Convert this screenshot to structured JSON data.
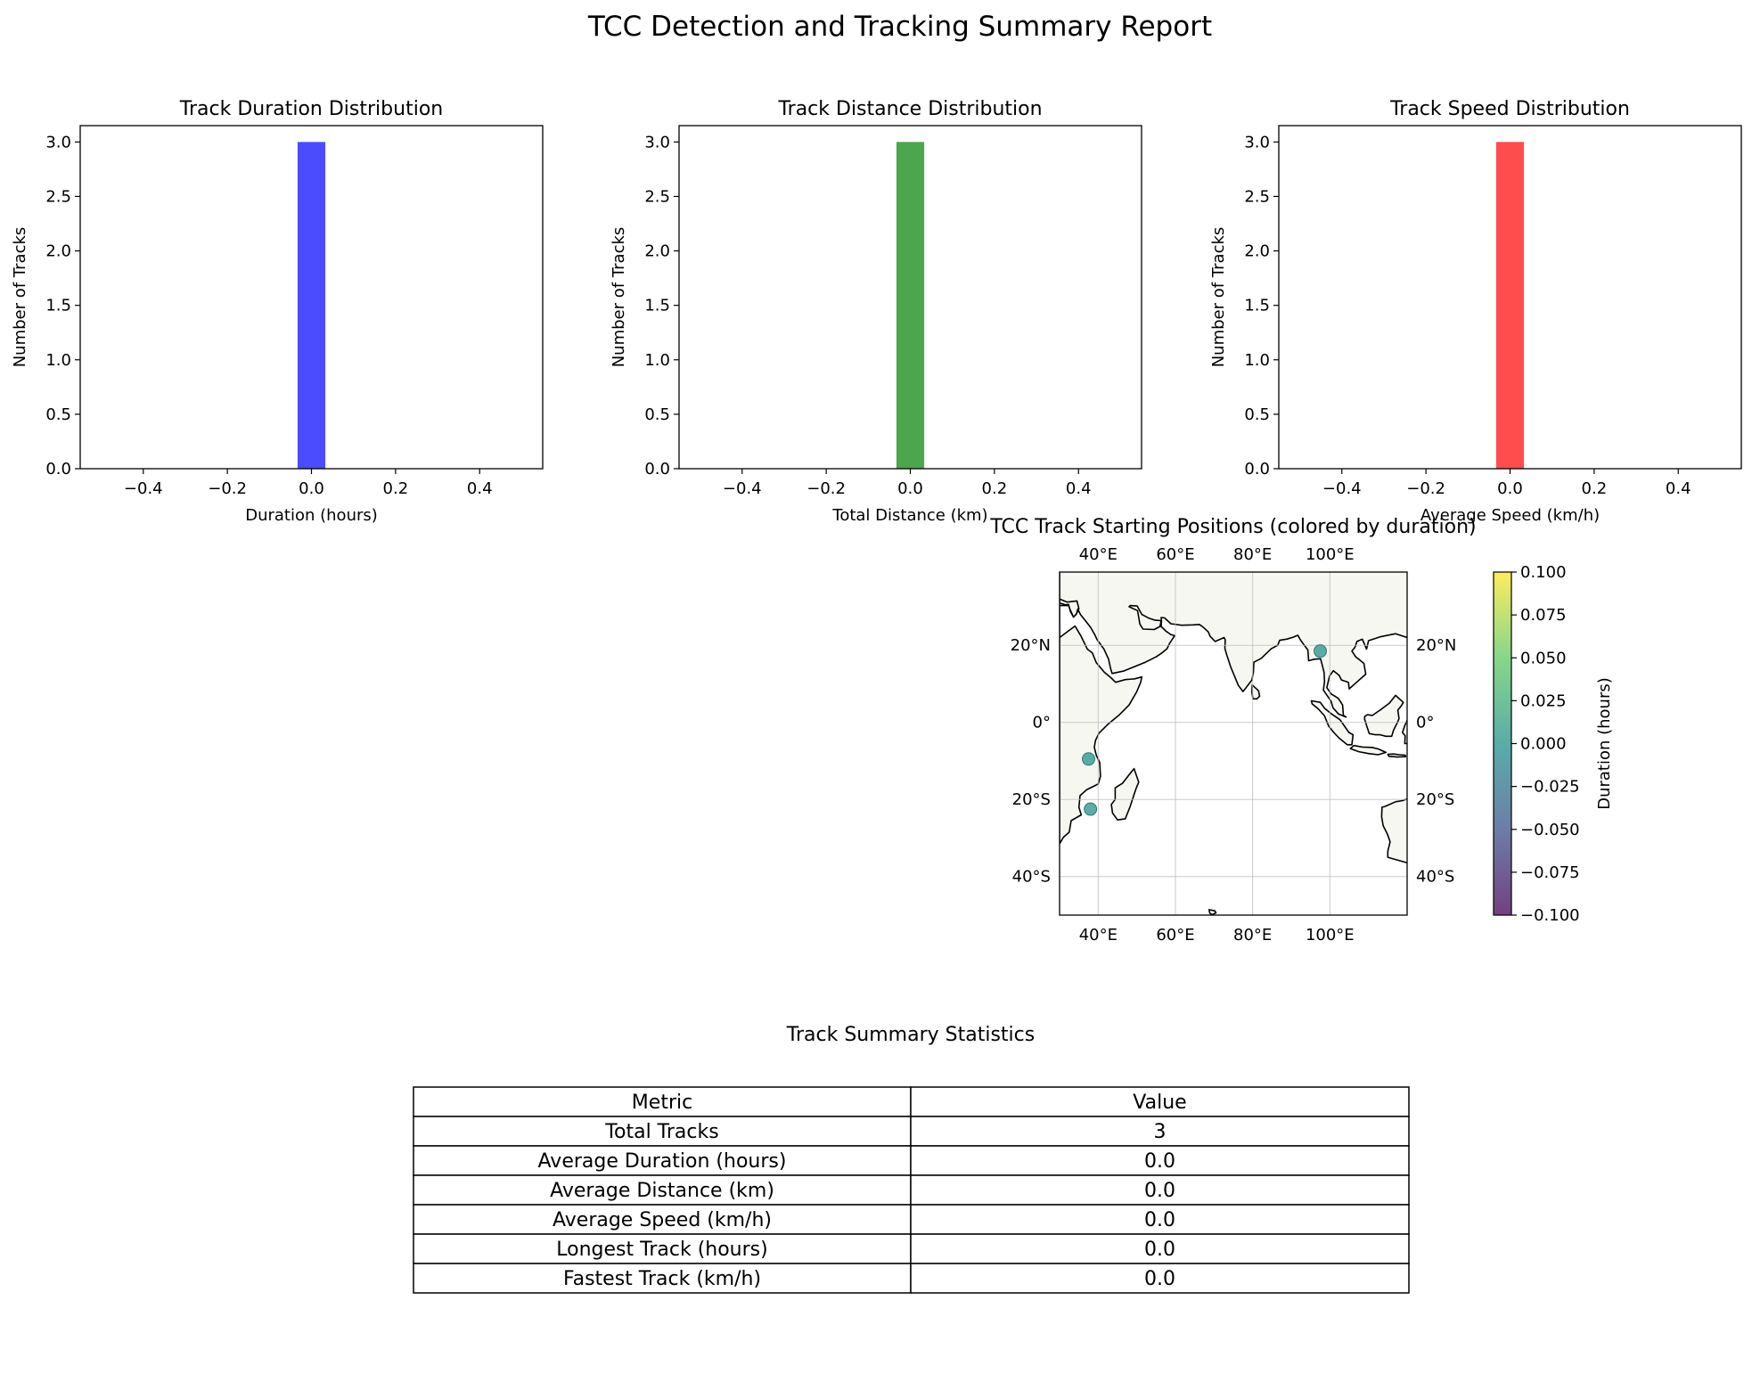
{
  "suptitle": "TCC Detection and Tracking Summary Report",
  "chart_data": [
    {
      "type": "bar",
      "title": "Track Duration Distribution",
      "xlabel": "Duration (hours)",
      "ylabel": "Number of Tracks",
      "xlim": [
        -0.55,
        0.55
      ],
      "ylim": [
        0,
        3.15
      ],
      "xticks": [
        -0.4,
        -0.2,
        0.0,
        0.2,
        0.4
      ],
      "xtick_labels": [
        "−0.4",
        "−0.2",
        "0.0",
        "0.2",
        "0.4"
      ],
      "yticks": [
        0,
        0.5,
        1,
        1.5,
        2,
        2.5,
        3
      ],
      "ytick_labels": [
        "0.0",
        "0.5",
        "1.0",
        "1.5",
        "2.0",
        "2.5",
        "3.0"
      ],
      "bins": [
        {
          "x0": -0.033,
          "x1": 0.033,
          "count": 3
        }
      ],
      "color": "#4c4cff"
    },
    {
      "type": "bar",
      "title": "Track Distance Distribution",
      "xlabel": "Total Distance (km)",
      "ylabel": "Number of Tracks",
      "xlim": [
        -0.55,
        0.55
      ],
      "ylim": [
        0,
        3.15
      ],
      "xticks": [
        -0.4,
        -0.2,
        0.0,
        0.2,
        0.4
      ],
      "xtick_labels": [
        "−0.4",
        "−0.2",
        "0.0",
        "0.2",
        "0.4"
      ],
      "yticks": [
        0,
        0.5,
        1,
        1.5,
        2,
        2.5,
        3
      ],
      "ytick_labels": [
        "0.0",
        "0.5",
        "1.0",
        "1.5",
        "2.0",
        "2.5",
        "3.0"
      ],
      "bins": [
        {
          "x0": -0.033,
          "x1": 0.033,
          "count": 3
        }
      ],
      "color": "#4ca64c"
    },
    {
      "type": "bar",
      "title": "Track Speed Distribution",
      "xlabel": "Average Speed (km/h)",
      "ylabel": "Number of Tracks",
      "xlim": [
        -0.55,
        0.55
      ],
      "ylim": [
        0,
        3.15
      ],
      "xticks": [
        -0.4,
        -0.2,
        0.0,
        0.2,
        0.4
      ],
      "xtick_labels": [
        "−0.4",
        "−0.2",
        "0.0",
        "0.2",
        "0.4"
      ],
      "yticks": [
        0,
        0.5,
        1,
        1.5,
        2,
        2.5,
        3
      ],
      "ytick_labels": [
        "0.0",
        "0.5",
        "1.0",
        "1.5",
        "2.0",
        "2.5",
        "3.0"
      ],
      "bins": [
        {
          "x0": -0.033,
          "x1": 0.033,
          "count": 3
        }
      ],
      "color": "#ff4c4c"
    },
    {
      "type": "scatter",
      "title": "TCC Track Starting Positions (colored by duration)",
      "xlim": [
        30,
        120
      ],
      "ylim": [
        -50,
        39
      ],
      "lon_ticks": [
        40,
        60,
        80,
        100
      ],
      "lon_tick_labels": [
        "40°E",
        "60°E",
        "80°E",
        "100°E"
      ],
      "lat_ticks": [
        20,
        0,
        -20,
        -40
      ],
      "lat_tick_labels": [
        "20°N",
        "0°",
        "20°S",
        "40°S"
      ],
      "grid": true,
      "land_color": "#f7f7f2",
      "point_color": "#3f9e98",
      "points": [
        {
          "lon": 97.5,
          "lat": 18.5,
          "duration": 0.0
        },
        {
          "lon": 37.5,
          "lat": -9.5,
          "duration": 0.0
        },
        {
          "lon": 38.0,
          "lat": -22.5,
          "duration": 0.0
        }
      ],
      "colorbar": {
        "label": "Duration (hours)",
        "vmin": -0.1,
        "vmax": 0.1,
        "ticks": [
          0.1,
          0.075,
          0.05,
          0.025,
          0.0,
          -0.025,
          -0.05,
          -0.075,
          -0.1
        ],
        "tick_labels": [
          "0.100",
          "0.075",
          "0.050",
          "0.025",
          "0.000",
          "−0.025",
          "−0.050",
          "−0.075",
          "−0.100"
        ]
      }
    },
    {
      "type": "table",
      "title": "Track Summary Statistics",
      "columns": [
        "Metric",
        "Value"
      ],
      "rows": [
        [
          "Total Tracks",
          "3"
        ],
        [
          "Average Duration (hours)",
          "0.0"
        ],
        [
          "Average Distance (km)",
          "0.0"
        ],
        [
          "Average Speed (km/h)",
          "0.0"
        ],
        [
          "Longest Track (hours)",
          "0.0"
        ],
        [
          "Fastest Track (km/h)",
          "0.0"
        ]
      ]
    }
  ]
}
